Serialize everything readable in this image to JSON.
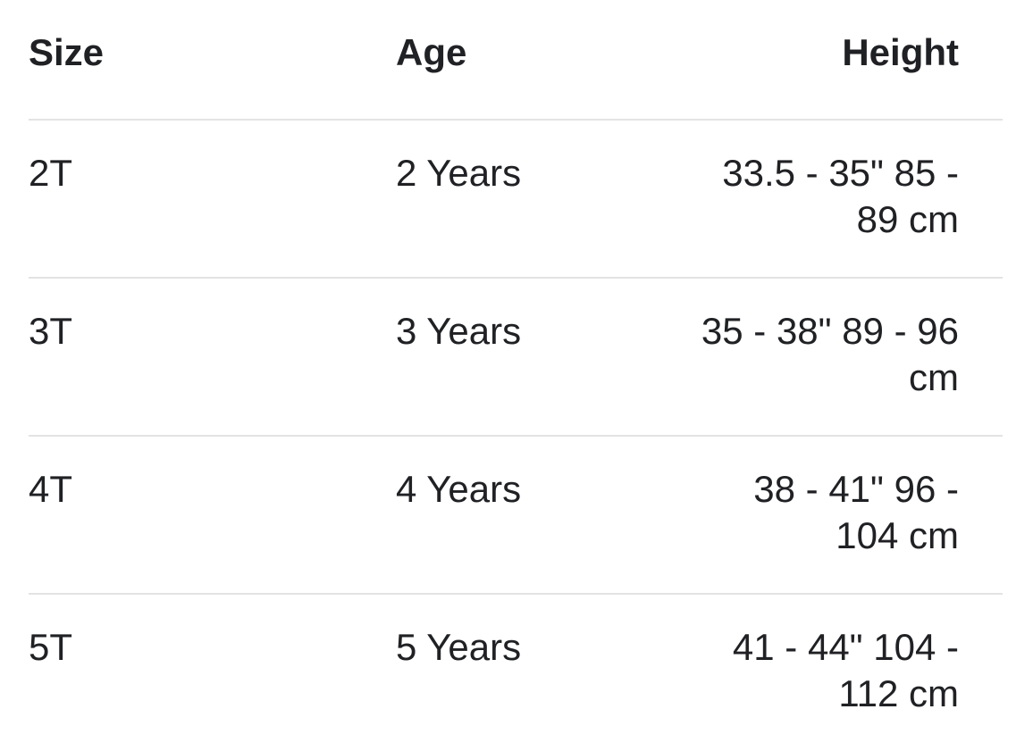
{
  "table": {
    "headers": {
      "size": "Size",
      "age": "Age",
      "height": "Height"
    },
    "rows": [
      {
        "size": "2T",
        "age": "2 Years",
        "height": "33.5 - 35\" 85 - 89 cm"
      },
      {
        "size": "3T",
        "age": "3 Years",
        "height": "35 - 38\" 89 - 96 cm"
      },
      {
        "size": "4T",
        "age": "4 Years",
        "height": "38 - 41\" 96 - 104 cm"
      },
      {
        "size": "5T",
        "age": "5 Years",
        "height": "41 - 44\" 104 - 112 cm"
      }
    ]
  },
  "colors": {
    "text": "#202124",
    "divider": "#e3e3e3"
  }
}
